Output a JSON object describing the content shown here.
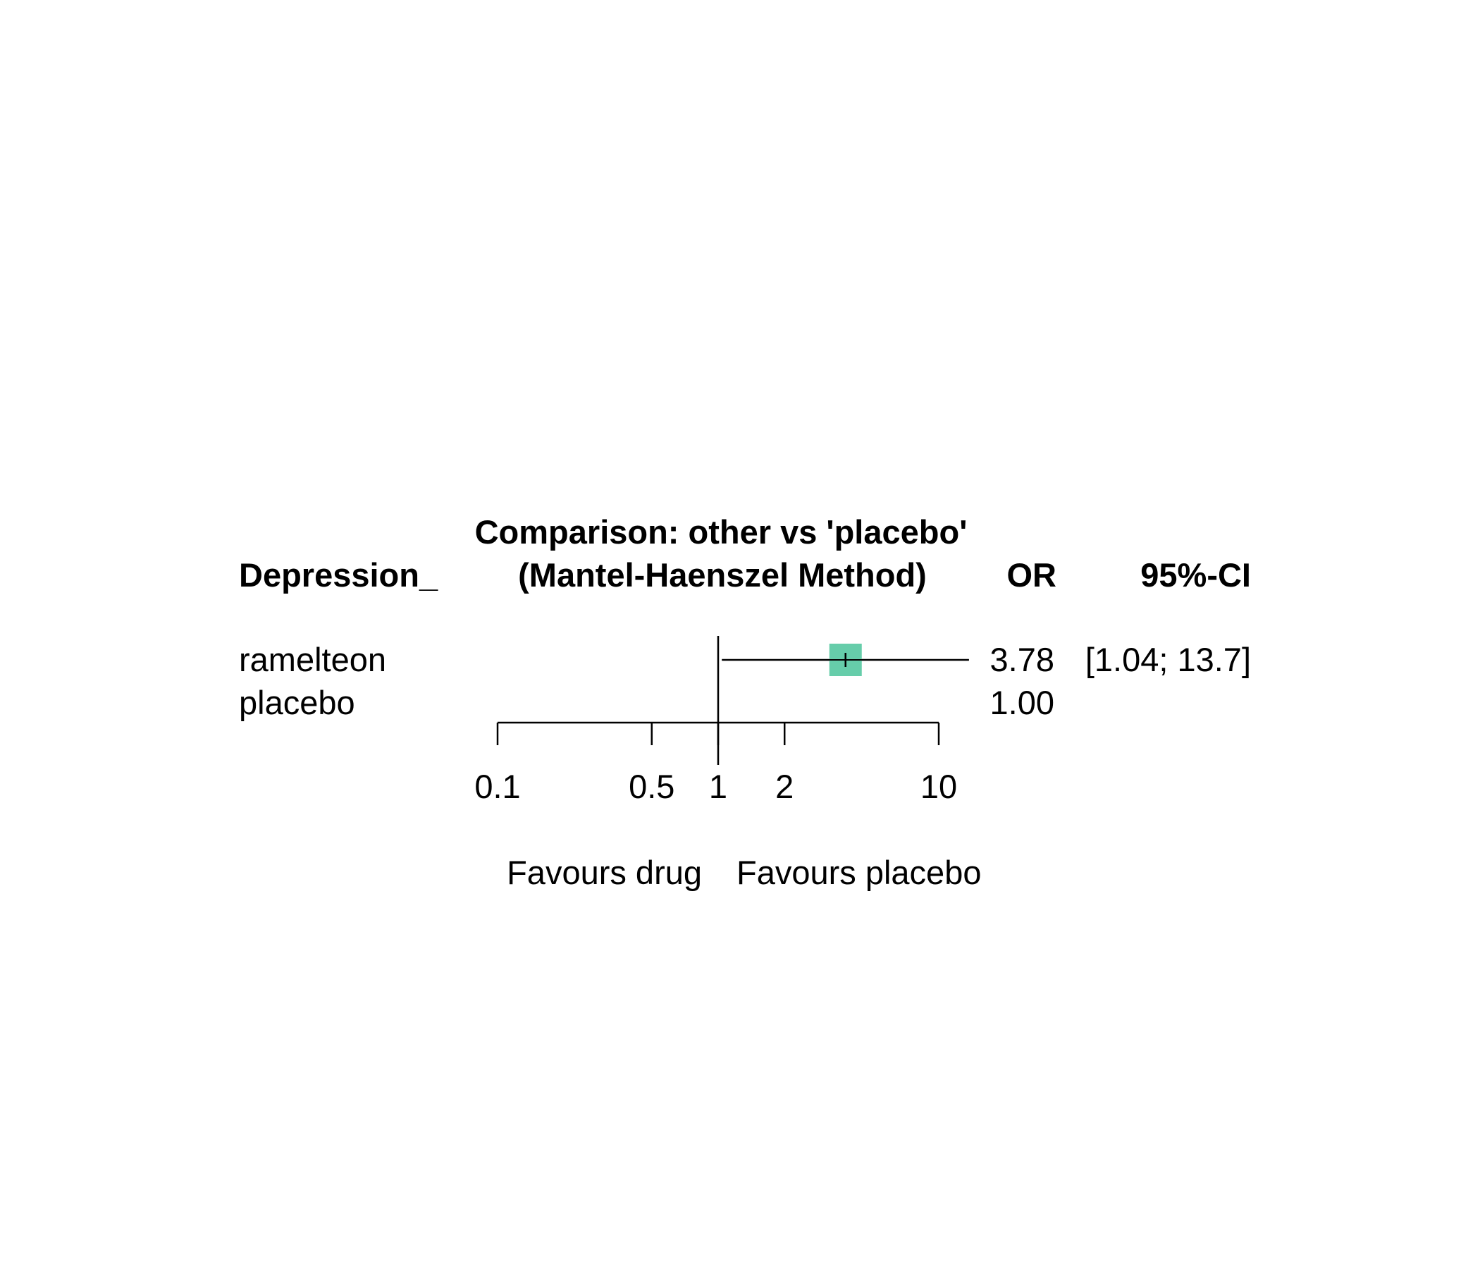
{
  "chart_data": {
    "type": "forest",
    "title": "Comparison: other vs 'placebo'",
    "subtitle": "(Mantel-Haenszel Method)",
    "columns": {
      "label": "Depression_",
      "effect": "OR",
      "ci": "95%-CI"
    },
    "scale": "log",
    "xlim": [
      0.1,
      10
    ],
    "reference_line": 1,
    "ticks": [
      {
        "value": 0.1,
        "label": "0.1"
      },
      {
        "value": 0.5,
        "label": "0.5"
      },
      {
        "value": 1,
        "label": "1"
      },
      {
        "value": 2,
        "label": "2"
      },
      {
        "value": 10,
        "label": "10"
      }
    ],
    "rows": [
      {
        "label": "ramelteon",
        "or": 3.78,
        "or_text": "3.78",
        "ci_lower": 1.04,
        "ci_upper": 13.7,
        "ci_text": "[1.04; 13.7]",
        "has_marker": true
      },
      {
        "label": "placebo",
        "or": 1.0,
        "or_text": "1.00",
        "ci_lower": null,
        "ci_upper": null,
        "ci_text": "",
        "has_marker": false
      }
    ],
    "favours_left": "Favours drug",
    "favours_right": "Favours placebo",
    "marker_color": "#66CDAA",
    "grid": false
  }
}
